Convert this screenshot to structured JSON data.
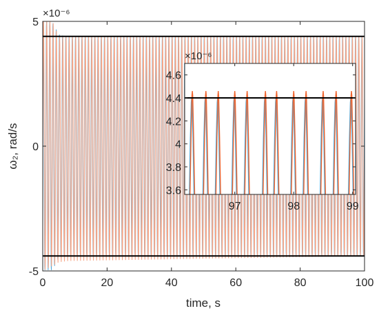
{
  "chart_data": [
    {
      "type": "line",
      "role": "main",
      "xlabel": "time, s",
      "ylabel": "ω₂, rad/s",
      "exponent_label": "×10⁻⁶",
      "xlim": [
        0,
        100
      ],
      "ylim": [
        -5e-06,
        5e-06
      ],
      "xticks": [
        0,
        20,
        40,
        60,
        80,
        100
      ],
      "xtick_labels": [
        "0",
        "20",
        "40",
        "60",
        "80",
        "100"
      ],
      "yticks": [
        -5e-06,
        0,
        5e-06
      ],
      "ytick_labels": [
        "-5",
        "0",
        "5"
      ],
      "bounds": [
        4.4e-06,
        -4.4e-06
      ],
      "oscillation_period_s": 1.0,
      "series": [
        {
          "envelope": [
            [
              0,
              5e-06
            ],
            [
              3,
              5e-06
            ],
            [
              5,
              4.5e-06
            ],
            [
              8,
              4.4e-06
            ],
            [
              100,
              4.4e-06
            ]
          ],
          "envelope_min": [
            [
              0,
              -5e-06
            ],
            [
              3,
              -5e-06
            ],
            [
              5,
              -4.5e-06
            ],
            [
              8,
              -4.4e-06
            ],
            [
              100,
              -4.4e-06
            ]
          ]
        },
        {
          "envelope": [
            [
              0,
              5e-06
            ],
            [
              3,
              5e-06
            ],
            [
              5,
              4.4e-06
            ],
            [
              8,
              4.4e-06
            ],
            [
              100,
              4.4e-06
            ]
          ],
          "envelope_min": [
            [
              0,
              -5e-06
            ],
            [
              3,
              -4.8e-06
            ],
            [
              5,
              -4.65e-06
            ],
            [
              8,
              -4.6e-06
            ],
            [
              100,
              -4.4e-06
            ]
          ]
        }
      ]
    },
    {
      "type": "line",
      "role": "inset",
      "exponent_label": "×10⁻⁶",
      "xlim": [
        96.15,
        99.05
      ],
      "ylim": [
        3.56e-06,
        4.7e-06
      ],
      "xticks": [
        97,
        98,
        99
      ],
      "xtick_labels": [
        "97",
        "98",
        "99"
      ],
      "yticks": [
        3.6e-06,
        3.8e-06,
        4e-06,
        4.2e-06,
        4.4e-06,
        4.6e-06
      ],
      "ytick_labels": [
        "3.6",
        "3.8",
        "4",
        "4.2",
        "4.4",
        "4.6"
      ],
      "bound": 4.4e-06,
      "peaks_x": [
        96.28,
        96.51,
        96.72,
        97.0,
        97.21,
        97.52,
        97.71,
        98.0,
        98.21,
        98.5,
        98.72,
        98.98
      ],
      "series": [
        {
          "peak_value": 4.4e-06
        },
        {
          "peak_value": 4.46e-06
        }
      ]
    }
  ],
  "colors": {
    "series1": "#4DA8DA",
    "series2": "#F0652F",
    "series2_light": "#F6A688",
    "bound": "#000000",
    "axes": "#262626"
  }
}
